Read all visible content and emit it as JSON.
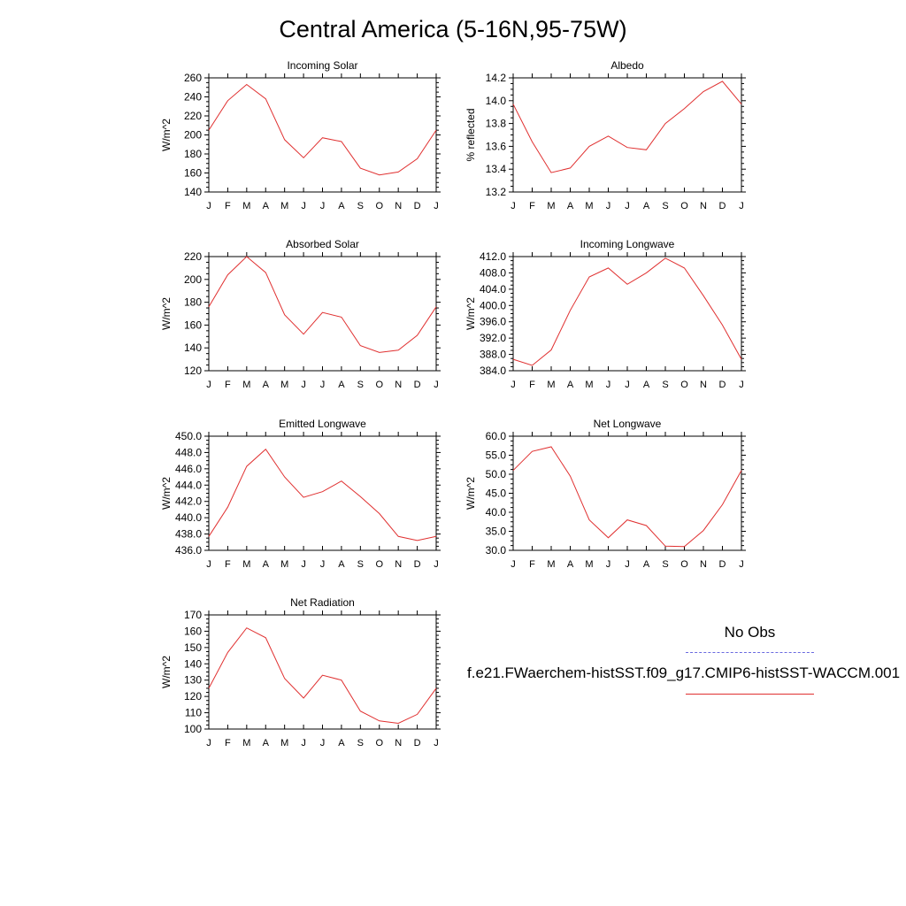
{
  "title": "Central America (5-16N,95-75W)",
  "legend": {
    "obs_label": "No Obs",
    "model_label": "f.e21.FWaerchem-histSST.f09_g17.CMIP6-histSST-WACCM.001",
    "obs_color": "#6a6ae0",
    "model_color": "#e03030"
  },
  "chart_data": [
    {
      "type": "line",
      "title": "Incoming Solar",
      "ylabel": "W/m^2",
      "categories": [
        "J",
        "F",
        "M",
        "A",
        "M",
        "J",
        "J",
        "A",
        "S",
        "O",
        "N",
        "D",
        "J"
      ],
      "ylim": [
        140,
        260
      ],
      "yticks": [
        140,
        160,
        180,
        200,
        220,
        240,
        260
      ],
      "tick_labels": [
        "140",
        "160",
        "180",
        "200",
        "220",
        "240",
        "260"
      ],
      "series": [
        {
          "values": [
            205,
            236,
            253,
            238,
            195,
            176,
            197,
            193,
            165,
            158,
            161,
            175,
            205
          ]
        }
      ]
    },
    {
      "type": "line",
      "title": "Albedo",
      "ylabel": "% reflected",
      "categories": [
        "J",
        "F",
        "M",
        "A",
        "M",
        "J",
        "J",
        "A",
        "S",
        "O",
        "N",
        "D",
        "J"
      ],
      "ylim": [
        13.2,
        14.2
      ],
      "yticks": [
        13.2,
        13.4,
        13.6,
        13.8,
        14.0,
        14.2
      ],
      "tick_labels": [
        "13.2",
        "13.4",
        "13.6",
        "13.8",
        "14.0",
        "14.2"
      ],
      "series": [
        {
          "values": [
            13.97,
            13.64,
            13.37,
            13.41,
            13.6,
            13.69,
            13.59,
            13.57,
            13.8,
            13.93,
            14.08,
            14.17,
            13.97
          ]
        }
      ]
    },
    {
      "type": "line",
      "title": "Absorbed Solar",
      "ylabel": "W/m^2",
      "categories": [
        "J",
        "F",
        "M",
        "A",
        "M",
        "J",
        "J",
        "A",
        "S",
        "O",
        "N",
        "D",
        "J"
      ],
      "ylim": [
        120,
        220
      ],
      "yticks": [
        120,
        140,
        160,
        180,
        200,
        220
      ],
      "tick_labels": [
        "120",
        "140",
        "160",
        "180",
        "200",
        "220"
      ],
      "series": [
        {
          "values": [
            176,
            204,
            220,
            206,
            169,
            152,
            171,
            167,
            142,
            136,
            138,
            151,
            176
          ]
        }
      ]
    },
    {
      "type": "line",
      "title": "Incoming Longwave",
      "ylabel": "W/m^2",
      "categories": [
        "J",
        "F",
        "M",
        "A",
        "M",
        "J",
        "J",
        "A",
        "S",
        "O",
        "N",
        "D",
        "J"
      ],
      "ylim": [
        384,
        412
      ],
      "yticks": [
        384,
        388,
        392,
        396,
        400,
        404,
        408,
        412
      ],
      "tick_labels": [
        "384.0",
        "388.0",
        "392.0",
        "396.0",
        "400.0",
        "404.0",
        "408.0",
        "412.0"
      ],
      "series": [
        {
          "values": [
            386.8,
            385.3,
            389.1,
            398.8,
            407.0,
            409.2,
            405.2,
            408.0,
            411.6,
            409.2,
            402.4,
            395.2,
            386.8
          ]
        }
      ]
    },
    {
      "type": "line",
      "title": "Emitted Longwave",
      "ylabel": "W/m^2",
      "categories": [
        "J",
        "F",
        "M",
        "A",
        "M",
        "J",
        "J",
        "A",
        "S",
        "O",
        "N",
        "D",
        "J"
      ],
      "ylim": [
        436,
        450
      ],
      "yticks": [
        436,
        438,
        440,
        442,
        444,
        446,
        448,
        450
      ],
      "tick_labels": [
        "436.0",
        "438.0",
        "440.0",
        "442.0",
        "444.0",
        "446.0",
        "448.0",
        "450.0"
      ],
      "series": [
        {
          "values": [
            437.7,
            441.3,
            446.3,
            448.4,
            445.0,
            442.5,
            443.2,
            444.5,
            442.6,
            440.5,
            437.7,
            437.2,
            437.7
          ]
        }
      ]
    },
    {
      "type": "line",
      "title": "Net Longwave",
      "ylabel": "W/m^2",
      "categories": [
        "J",
        "F",
        "M",
        "A",
        "M",
        "J",
        "J",
        "A",
        "S",
        "O",
        "N",
        "D",
        "J"
      ],
      "ylim": [
        30,
        60
      ],
      "yticks": [
        30,
        35,
        40,
        45,
        50,
        55,
        60
      ],
      "tick_labels": [
        "30.0",
        "35.0",
        "40.0",
        "45.0",
        "50.0",
        "55.0",
        "60.0"
      ],
      "series": [
        {
          "values": [
            51.0,
            56.0,
            57.2,
            49.5,
            38.0,
            33.3,
            38.0,
            36.5,
            31.1,
            31.0,
            35.2,
            42.0,
            51.0
          ]
        }
      ]
    },
    {
      "type": "line",
      "title": "Net Radiation",
      "ylabel": "W/m^2",
      "categories": [
        "J",
        "F",
        "M",
        "A",
        "M",
        "J",
        "J",
        "A",
        "S",
        "O",
        "N",
        "D",
        "J"
      ],
      "ylim": [
        100,
        170
      ],
      "yticks": [
        100,
        110,
        120,
        130,
        140,
        150,
        160,
        170
      ],
      "tick_labels": [
        "100",
        "110",
        "120",
        "130",
        "140",
        "150",
        "160",
        "170"
      ],
      "series": [
        {
          "values": [
            125,
            147,
            162,
            156,
            131,
            119,
            133,
            130,
            111,
            105,
            103.5,
            109,
            125
          ]
        }
      ]
    }
  ]
}
